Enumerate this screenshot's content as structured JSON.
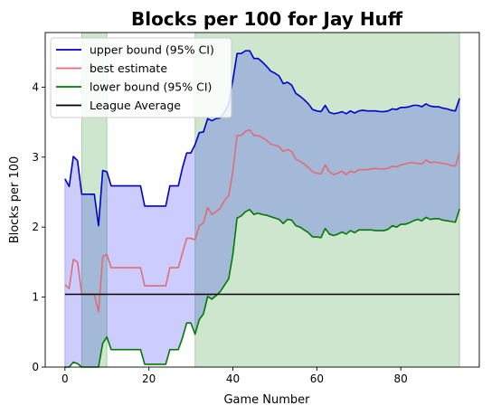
{
  "chart_data": {
    "type": "line",
    "title": "Blocks per 100 for Jay Huff",
    "xlabel": "Game Number",
    "ylabel": "Blocks per 100",
    "xlim": [
      -4.7,
      98.7
    ],
    "ylim": [
      0,
      4.78
    ],
    "xticks": [
      0,
      20,
      40,
      60,
      80
    ],
    "yticks": [
      0,
      1,
      2,
      3,
      4
    ],
    "grid": false,
    "legend_position": "upper-left",
    "league_average": 1.04,
    "league_average_x": [
      0,
      94
    ],
    "green_spans": [
      [
        4,
        10
      ],
      [
        31,
        94
      ]
    ],
    "colors": {
      "upper": "#0000cc",
      "best": "#e06c75",
      "lower": "#007a00",
      "league": "#000000",
      "ci_fill": "#0000ff",
      "span_fill": "#228b22"
    },
    "series": [
      {
        "name": "upper bound (95% CI)",
        "key": "upper",
        "points": [
          [
            0,
            2.69
          ],
          [
            1,
            2.58
          ],
          [
            2,
            3.01
          ],
          [
            3,
            2.95
          ],
          [
            4,
            2.47
          ],
          [
            5,
            2.47
          ],
          [
            6,
            2.47
          ],
          [
            7,
            2.47
          ],
          [
            8,
            2.02
          ],
          [
            9,
            2.81
          ],
          [
            10,
            2.79
          ],
          [
            11,
            2.59
          ],
          [
            12,
            2.59
          ],
          [
            13,
            2.59
          ],
          [
            14,
            2.59
          ],
          [
            15,
            2.59
          ],
          [
            16,
            2.59
          ],
          [
            17,
            2.59
          ],
          [
            18,
            2.59
          ],
          [
            19,
            2.3
          ],
          [
            20,
            2.3
          ],
          [
            21,
            2.3
          ],
          [
            22,
            2.3
          ],
          [
            23,
            2.3
          ],
          [
            24,
            2.3
          ],
          [
            25,
            2.59
          ],
          [
            26,
            2.59
          ],
          [
            27,
            2.59
          ],
          [
            28,
            2.85
          ],
          [
            29,
            3.06
          ],
          [
            30,
            3.06
          ],
          [
            31,
            3.18
          ],
          [
            32,
            3.35
          ],
          [
            33,
            3.36
          ],
          [
            34,
            3.55
          ],
          [
            35,
            3.52
          ],
          [
            36,
            3.55
          ],
          [
            37,
            3.56
          ],
          [
            38,
            3.64
          ],
          [
            39,
            3.75
          ],
          [
            40,
            4.1
          ],
          [
            41,
            4.48
          ],
          [
            42,
            4.48
          ],
          [
            43,
            4.52
          ],
          [
            44,
            4.52
          ],
          [
            45,
            4.41
          ],
          [
            46,
            4.41
          ],
          [
            47,
            4.36
          ],
          [
            48,
            4.3
          ],
          [
            49,
            4.23
          ],
          [
            50,
            4.2
          ],
          [
            51,
            4.16
          ],
          [
            52,
            4.05
          ],
          [
            53,
            4.07
          ],
          [
            54,
            4.03
          ],
          [
            55,
            3.91
          ],
          [
            56,
            3.87
          ],
          [
            57,
            3.82
          ],
          [
            58,
            3.76
          ],
          [
            59,
            3.68
          ],
          [
            60,
            3.66
          ],
          [
            61,
            3.65
          ],
          [
            62,
            3.74
          ],
          [
            63,
            3.64
          ],
          [
            64,
            3.62
          ],
          [
            65,
            3.63
          ],
          [
            66,
            3.65
          ],
          [
            67,
            3.62
          ],
          [
            68,
            3.66
          ],
          [
            69,
            3.63
          ],
          [
            70,
            3.66
          ],
          [
            71,
            3.67
          ],
          [
            72,
            3.66
          ],
          [
            73,
            3.66
          ],
          [
            74,
            3.66
          ],
          [
            75,
            3.65
          ],
          [
            76,
            3.65
          ],
          [
            77,
            3.66
          ],
          [
            78,
            3.69
          ],
          [
            79,
            3.68
          ],
          [
            80,
            3.71
          ],
          [
            81,
            3.71
          ],
          [
            82,
            3.72
          ],
          [
            83,
            3.74
          ],
          [
            84,
            3.74
          ],
          [
            85,
            3.72
          ],
          [
            86,
            3.76
          ],
          [
            87,
            3.73
          ],
          [
            88,
            3.72
          ],
          [
            89,
            3.72
          ],
          [
            90,
            3.7
          ],
          [
            91,
            3.69
          ],
          [
            92,
            3.67
          ],
          [
            93,
            3.66
          ],
          [
            94,
            3.84
          ]
        ]
      },
      {
        "name": "best estimate",
        "key": "best",
        "points": [
          [
            0,
            1.18
          ],
          [
            1,
            1.12
          ],
          [
            2,
            1.54
          ],
          [
            3,
            1.5
          ],
          [
            4,
            1.04
          ],
          [
            5,
            1.04
          ],
          [
            6,
            1.04
          ],
          [
            7,
            1.04
          ],
          [
            8,
            0.79
          ],
          [
            9,
            1.58
          ],
          [
            10,
            1.61
          ],
          [
            11,
            1.42
          ],
          [
            12,
            1.42
          ],
          [
            13,
            1.42
          ],
          [
            14,
            1.42
          ],
          [
            15,
            1.42
          ],
          [
            16,
            1.42
          ],
          [
            17,
            1.42
          ],
          [
            18,
            1.42
          ],
          [
            19,
            1.16
          ],
          [
            20,
            1.16
          ],
          [
            21,
            1.16
          ],
          [
            22,
            1.16
          ],
          [
            23,
            1.16
          ],
          [
            24,
            1.16
          ],
          [
            25,
            1.42
          ],
          [
            26,
            1.42
          ],
          [
            27,
            1.42
          ],
          [
            28,
            1.63
          ],
          [
            29,
            1.84
          ],
          [
            30,
            1.84
          ],
          [
            31,
            1.82
          ],
          [
            32,
            2.02
          ],
          [
            33,
            2.06
          ],
          [
            34,
            2.28
          ],
          [
            35,
            2.18
          ],
          [
            36,
            2.22
          ],
          [
            37,
            2.27
          ],
          [
            38,
            2.38
          ],
          [
            39,
            2.45
          ],
          [
            40,
            2.8
          ],
          [
            41,
            3.31
          ],
          [
            42,
            3.31
          ],
          [
            43,
            3.37
          ],
          [
            44,
            3.39
          ],
          [
            45,
            3.31
          ],
          [
            46,
            3.31
          ],
          [
            47,
            3.28
          ],
          [
            48,
            3.24
          ],
          [
            49,
            3.19
          ],
          [
            50,
            3.17
          ],
          [
            51,
            3.15
          ],
          [
            52,
            3.08
          ],
          [
            53,
            3.11
          ],
          [
            54,
            3.08
          ],
          [
            55,
            2.97
          ],
          [
            56,
            2.94
          ],
          [
            57,
            2.9
          ],
          [
            58,
            2.85
          ],
          [
            59,
            2.79
          ],
          [
            60,
            2.77
          ],
          [
            61,
            2.76
          ],
          [
            62,
            2.89
          ],
          [
            63,
            2.79
          ],
          [
            64,
            2.75
          ],
          [
            65,
            2.77
          ],
          [
            66,
            2.8
          ],
          [
            67,
            2.75
          ],
          [
            68,
            2.8
          ],
          [
            69,
            2.78
          ],
          [
            70,
            2.82
          ],
          [
            71,
            2.82
          ],
          [
            72,
            2.82
          ],
          [
            73,
            2.83
          ],
          [
            74,
            2.84
          ],
          [
            75,
            2.83
          ],
          [
            76,
            2.83
          ],
          [
            77,
            2.84
          ],
          [
            78,
            2.87
          ],
          [
            79,
            2.86
          ],
          [
            80,
            2.89
          ],
          [
            81,
            2.9
          ],
          [
            82,
            2.92
          ],
          [
            83,
            2.92
          ],
          [
            84,
            2.91
          ],
          [
            85,
            2.9
          ],
          [
            86,
            2.96
          ],
          [
            87,
            2.92
          ],
          [
            88,
            2.93
          ],
          [
            89,
            2.92
          ],
          [
            90,
            2.91
          ],
          [
            91,
            2.9
          ],
          [
            92,
            2.88
          ],
          [
            93,
            2.87
          ],
          [
            94,
            3.07
          ]
        ]
      },
      {
        "name": "lower bound (95% CI)",
        "key": "lower",
        "points": [
          [
            0,
            0
          ],
          [
            1,
            0
          ],
          [
            2,
            0.07
          ],
          [
            3,
            0.05
          ],
          [
            4,
            0
          ],
          [
            5,
            0
          ],
          [
            6,
            0
          ],
          [
            7,
            0
          ],
          [
            8,
            0
          ],
          [
            9,
            0.34
          ],
          [
            10,
            0.43
          ],
          [
            11,
            0.25
          ],
          [
            12,
            0.25
          ],
          [
            13,
            0.25
          ],
          [
            14,
            0.25
          ],
          [
            15,
            0.25
          ],
          [
            16,
            0.25
          ],
          [
            17,
            0.25
          ],
          [
            18,
            0.25
          ],
          [
            19,
            0.04
          ],
          [
            20,
            0.04
          ],
          [
            21,
            0.04
          ],
          [
            22,
            0.04
          ],
          [
            23,
            0.04
          ],
          [
            24,
            0.04
          ],
          [
            25,
            0.25
          ],
          [
            26,
            0.25
          ],
          [
            27,
            0.25
          ],
          [
            28,
            0.42
          ],
          [
            29,
            0.63
          ],
          [
            30,
            0.63
          ],
          [
            31,
            0.47
          ],
          [
            32,
            0.68
          ],
          [
            33,
            0.76
          ],
          [
            34,
            1.01
          ],
          [
            35,
            0.97
          ],
          [
            36,
            1.02
          ],
          [
            37,
            1.08
          ],
          [
            38,
            1.17
          ],
          [
            39,
            1.26
          ],
          [
            40,
            1.61
          ],
          [
            41,
            2.13
          ],
          [
            42,
            2.16
          ],
          [
            43,
            2.22
          ],
          [
            44,
            2.25
          ],
          [
            45,
            2.18
          ],
          [
            46,
            2.2
          ],
          [
            47,
            2.18
          ],
          [
            48,
            2.17
          ],
          [
            49,
            2.15
          ],
          [
            50,
            2.13
          ],
          [
            51,
            2.11
          ],
          [
            52,
            2.05
          ],
          [
            53,
            2.11
          ],
          [
            54,
            2.1
          ],
          [
            55,
            2.02
          ],
          [
            56,
            2.0
          ],
          [
            57,
            1.96
          ],
          [
            58,
            1.92
          ],
          [
            59,
            1.86
          ],
          [
            60,
            1.86
          ],
          [
            61,
            1.85
          ],
          [
            62,
            1.98
          ],
          [
            63,
            1.9
          ],
          [
            64,
            1.88
          ],
          [
            65,
            1.9
          ],
          [
            66,
            1.93
          ],
          [
            67,
            1.9
          ],
          [
            68,
            1.95
          ],
          [
            69,
            1.92
          ],
          [
            70,
            1.96
          ],
          [
            71,
            1.96
          ],
          [
            72,
            1.96
          ],
          [
            73,
            1.96
          ],
          [
            74,
            1.95
          ],
          [
            75,
            1.95
          ],
          [
            76,
            1.95
          ],
          [
            77,
            1.97
          ],
          [
            78,
            2.02
          ],
          [
            79,
            2.0
          ],
          [
            80,
            2.04
          ],
          [
            81,
            2.04
          ],
          [
            82,
            2.06
          ],
          [
            83,
            2.09
          ],
          [
            84,
            2.11
          ],
          [
            85,
            2.09
          ],
          [
            86,
            2.14
          ],
          [
            87,
            2.11
          ],
          [
            88,
            2.12
          ],
          [
            89,
            2.12
          ],
          [
            90,
            2.1
          ],
          [
            91,
            2.09
          ],
          [
            92,
            2.08
          ],
          [
            93,
            2.07
          ],
          [
            94,
            2.26
          ]
        ]
      }
    ],
    "legend": [
      "upper bound (95% CI)",
      "best estimate",
      "lower bound (95% CI)",
      "League Average"
    ]
  }
}
